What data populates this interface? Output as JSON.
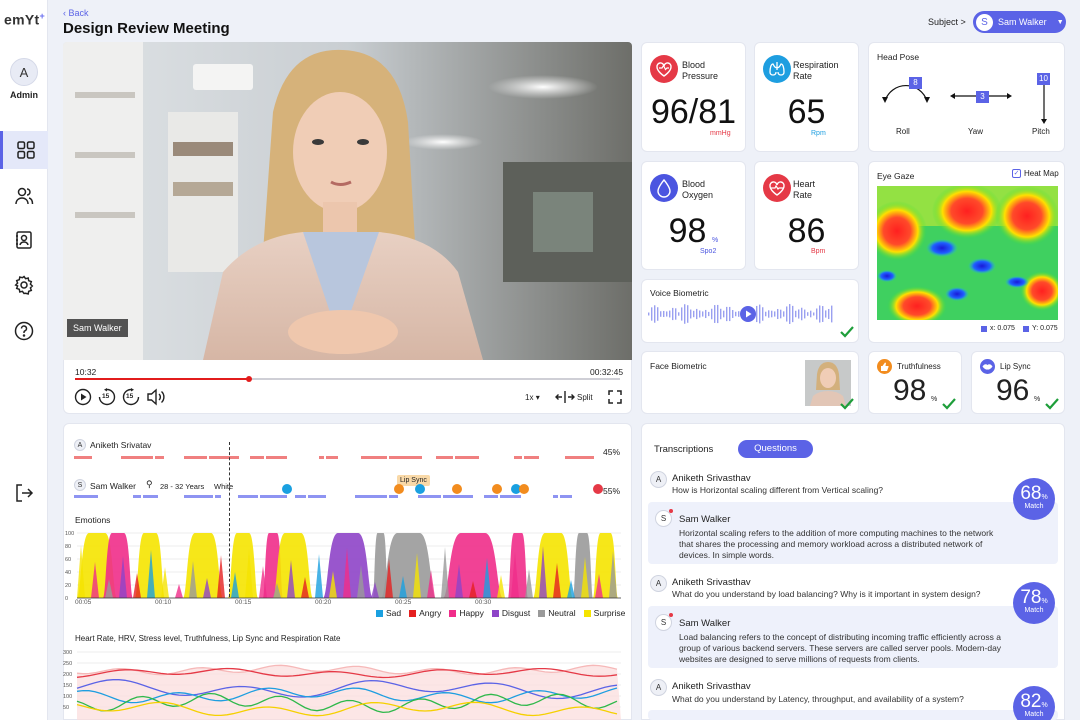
{
  "app": {
    "logo": "emYt",
    "logo_sup": "+"
  },
  "user": {
    "initial": "A",
    "role": "Admin"
  },
  "header": {
    "back": "Back",
    "title": "Design Review Meeting",
    "subject_label": "Subject >",
    "subject_initial": "S",
    "subject_name": "Sam Walker"
  },
  "video": {
    "name_tag": "Sam Walker",
    "current_time": "10:32",
    "total_time": "00:32:45",
    "progress": 0.32,
    "speed": "1x",
    "split_label": "Split",
    "skip_back": "15",
    "skip_fwd": "15"
  },
  "metrics": {
    "bp": {
      "title_1": "Blood",
      "title_2": "Pressure",
      "value": "96/81",
      "unit": "mmHg",
      "color": "#e53946"
    },
    "rr": {
      "title_1": "Respiration",
      "title_2": "Rate",
      "value": "65",
      "unit": "Rpm",
      "color": "#1e9ee0"
    },
    "bo": {
      "title_1": "Blood",
      "title_2": "Oxygen",
      "value": "98",
      "pct": "%",
      "unit": "Spo2",
      "color": "#4b55e0"
    },
    "hr": {
      "title_1": "Heart",
      "title_2": "Rate",
      "value": "86",
      "unit": "Bpm",
      "color": "#e53946"
    }
  },
  "head_pose": {
    "title": "Head Pose",
    "roll": "Roll",
    "yaw": "Yaw",
    "pitch": "Pitch",
    "roll_val": "8",
    "yaw_val": "3",
    "pitch_val": "10"
  },
  "eye_gaze": {
    "title": "Eye Gaze",
    "heat_map": "Heat Map",
    "x_label": "x: 0.075",
    "y_label": "Y: 0.075"
  },
  "voice": {
    "title": "Voice Biometric"
  },
  "face": {
    "title": "Face Biometric"
  },
  "truth": {
    "title": "Truthfulness",
    "value": "98",
    "pct": "%"
  },
  "lip": {
    "title": "Lip Sync",
    "value": "96",
    "pct": "%"
  },
  "timeline": {
    "p1_initial": "A",
    "p1_name": "Aniketh Srivatav",
    "p1_pct": "45%",
    "p2_initial": "S",
    "p2_name": "Sam Walker",
    "p2_age": "28 - 32 Years",
    "p2_race": "White",
    "p2_pct": "55%",
    "lip_sync_tag": "Lip Sync",
    "emotions_title": "Emotions",
    "ticks": [
      "00:05",
      "00:10",
      "00:15",
      "00:20",
      "00:25",
      "00:30"
    ],
    "y_ticks": [
      "100",
      "80",
      "60",
      "40",
      "20",
      "0"
    ],
    "legend": [
      {
        "name": "Sad",
        "color": "#1aa0e0"
      },
      {
        "name": "Angry",
        "color": "#e52020"
      },
      {
        "name": "Happy",
        "color": "#f02d8a"
      },
      {
        "name": "Disgust",
        "color": "#8e44c8"
      },
      {
        "name": "Neutral",
        "color": "#9a9a9a"
      },
      {
        "name": "Surprise",
        "color": "#f5e400"
      }
    ],
    "vitals_title": "Heart Rate, HRV, Stress level, Truthfulness, Lip Sync and Respiration Rate",
    "vitals_ticks": [
      "300",
      "250",
      "200",
      "150",
      "100",
      "50"
    ]
  },
  "transcript": {
    "tab1": "Transcriptions",
    "tab2": "Questions",
    "items": [
      {
        "q_initial": "A",
        "q_name": "Aniketh Srivasthav",
        "q_text": "How is Horizontal scaling different from Vertical scaling?",
        "a_initial": "S",
        "a_name": "Sam Walker",
        "a_line1": "Horizontal scaling refers to the addition of more computing machines to the network",
        "a_line2": "that shares the processing and memory workload across a distributed network of",
        "a_line3": "devices. In simple words.",
        "match": "68",
        "match_label": "Match"
      },
      {
        "q_initial": "A",
        "q_name": "Aniketh Srivasthav",
        "q_text": "What do you understand by load balancing? Why is it important in system design?",
        "a_initial": "S",
        "a_name": "Sam Walker",
        "a_line1": "Load balancing refers to the concept of distributing incoming traffic efficiently across a",
        "a_line2": "group of various backend servers. These servers are called server pools. Modern-day",
        "a_line3": "websites are designed to serve millions of requests from clients.",
        "match": "78",
        "match_label": "Match"
      },
      {
        "q_initial": "A",
        "q_name": "Aniketh Srivasthav",
        "q_text": "What do you understand by Latency, throughput, and availability of a system?",
        "match": "82",
        "match_label": "Match"
      }
    ]
  }
}
